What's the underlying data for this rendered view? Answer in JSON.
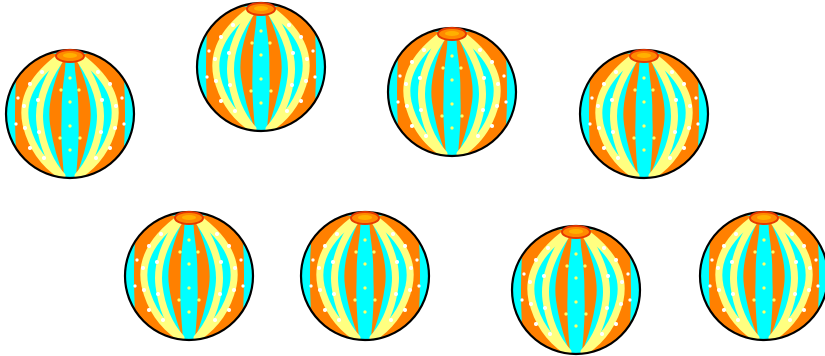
{
  "scene": {
    "ball_count": 8,
    "colors": {
      "background": "#ffffff",
      "orange": "#ff8000",
      "cyan": "#00ffff",
      "yellow": "#ffff80",
      "outline": "#000000",
      "cap_red": "#e63a00",
      "cap_orange": "#ff8a00",
      "dot_white": "#ffffff",
      "dot_yellow": "#ffff66"
    }
  }
}
